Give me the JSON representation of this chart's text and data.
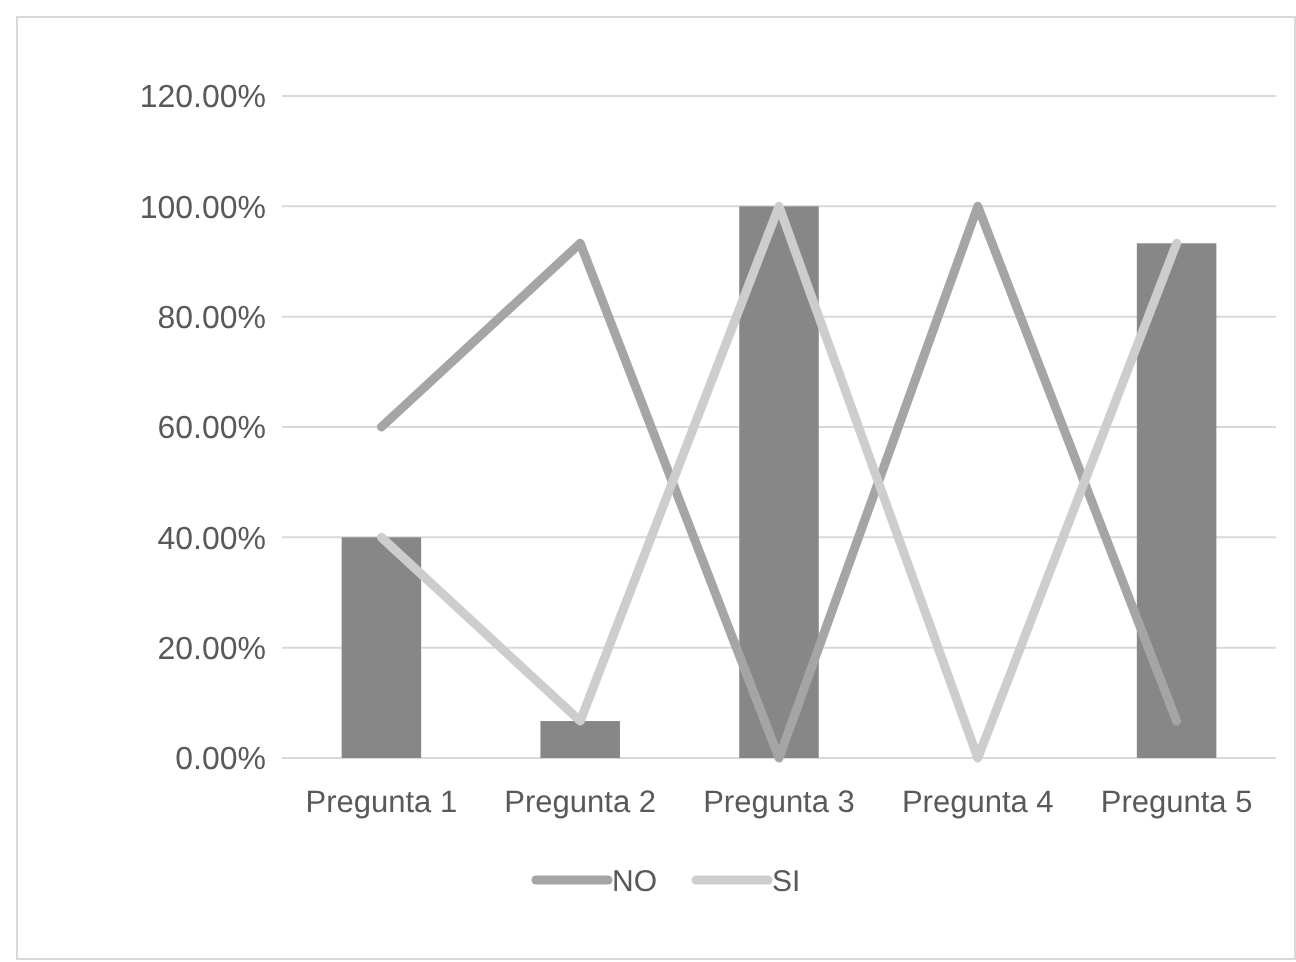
{
  "chart_data": {
    "type": "bar",
    "categories": [
      "Pregunta 1",
      "Pregunta 2",
      "Pregunta 3",
      "Pregunta 4",
      "Pregunta 5"
    ],
    "series": [
      {
        "color": "#878787",
        "values": [
          40,
          6.7,
          100,
          0,
          93.3
        ]
      },
      {
        "type": "line",
        "name": "NO",
        "color": "#a5a5a5",
        "values": [
          60,
          93.3,
          0,
          100,
          6.7
        ]
      },
      {
        "type": "line",
        "name": "SI",
        "color": "#cdcdcd",
        "values": [
          40,
          6.7,
          100,
          0,
          93.3
        ]
      }
    ],
    "ylim": [
      0,
      120
    ],
    "yticks": [
      {
        "value": 0,
        "label": "0.00%"
      },
      {
        "value": 20,
        "label": "20.00%"
      },
      {
        "value": 40,
        "label": "40.00%"
      },
      {
        "value": 60,
        "label": "60.00%"
      },
      {
        "value": 80,
        "label": "80.00%"
      },
      {
        "value": 100,
        "label": "100.00%"
      },
      {
        "value": 120,
        "label": "120.00%"
      }
    ],
    "grid": "y",
    "legend": "bottom",
    "marker": "none"
  }
}
